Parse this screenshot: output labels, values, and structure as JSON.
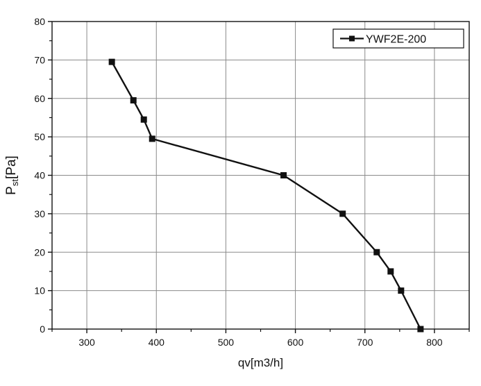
{
  "chart_data": {
    "type": "line",
    "title": "",
    "xlabel": "qv[m3/h]",
    "ylabel": {
      "main": "P",
      "sub": "st",
      "unit": "[Pa]"
    },
    "xlim": [
      250,
      850
    ],
    "ylim": [
      0,
      80
    ],
    "x_ticks": [
      300,
      400,
      500,
      600,
      700,
      800
    ],
    "y_ticks": [
      0,
      10,
      20,
      30,
      40,
      50,
      60,
      70,
      80
    ],
    "grid": true,
    "legend": {
      "position": "top-right"
    },
    "series": [
      {
        "name": "YWF2E-200",
        "color": "#111111",
        "marker": "square",
        "x": [
          336,
          367,
          382,
          394,
          583,
          668,
          717,
          737,
          752,
          780
        ],
        "y": [
          69.5,
          59.5,
          54.5,
          49.5,
          40,
          30,
          20,
          15,
          10,
          0
        ]
      }
    ]
  }
}
